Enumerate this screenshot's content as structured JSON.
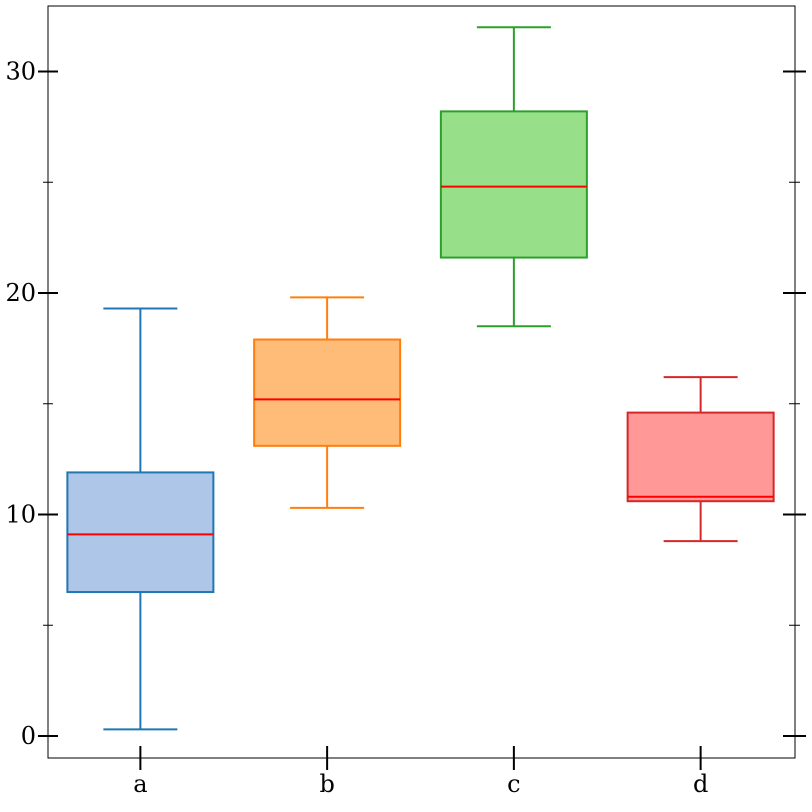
{
  "chart_data": {
    "type": "box",
    "title": "",
    "xlabel": "",
    "ylabel": "",
    "ylim": [
      -1,
      33
    ],
    "yticks": [
      0,
      10,
      20,
      30
    ],
    "yminor": [
      5,
      15,
      25
    ],
    "grid": false,
    "series": [
      {
        "category": "a",
        "color": "#1f77b4",
        "fill": "#aec7e8",
        "median_color": "#ff0000",
        "whisker_low": 0.3,
        "q1": 6.5,
        "median": 9.1,
        "q3": 11.9,
        "whisker_high": 19.3
      },
      {
        "category": "b",
        "color": "#ff7f0e",
        "fill": "#ffbb78",
        "median_color": "#ff0000",
        "whisker_low": 10.3,
        "q1": 13.1,
        "median": 15.2,
        "q3": 17.9,
        "whisker_high": 19.8
      },
      {
        "category": "c",
        "color": "#2ca02c",
        "fill": "#98df8a",
        "median_color": "#ff0000",
        "whisker_low": 18.5,
        "q1": 21.6,
        "median": 24.8,
        "q3": 28.2,
        "whisker_high": 32.0
      },
      {
        "category": "d",
        "color": "#d62728",
        "fill": "#ff9896",
        "median_color": "#ff0000",
        "whisker_low": 8.8,
        "q1": 10.6,
        "median": 10.8,
        "q3": 14.6,
        "whisker_high": 16.2
      }
    ]
  }
}
